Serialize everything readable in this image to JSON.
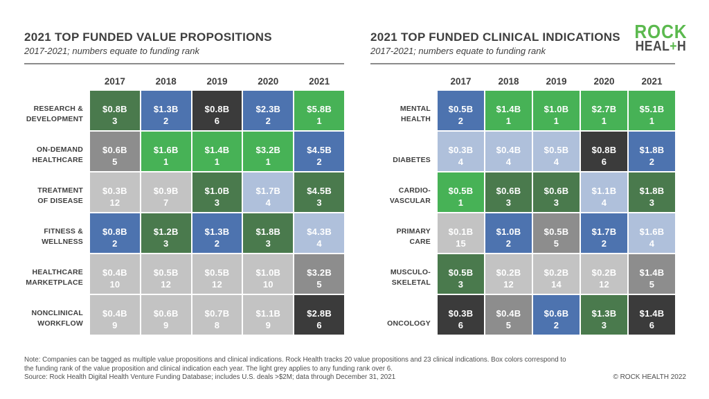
{
  "rank_colors": {
    "1": "#47B256",
    "2": "#4D73AF",
    "3": "#4A7A4D",
    "4": "#AFC0DB",
    "5": "#8D8D8D",
    "6": "#3B3B3B",
    "over6": "#C3C3C3"
  },
  "logo": {
    "line1": "ROCK",
    "line2_pre": "HEAL",
    "line2_plus": "+",
    "line2_post": "H",
    "green": "#5BB94E",
    "dark": "#4A4A4A"
  },
  "chart_data": [
    {
      "type": "heatmap",
      "title": "2021 TOP FUNDED VALUE PROPOSITIONS",
      "subtitle": "2017-2021; numbers equate to funding rank",
      "x_categories": [
        "2017",
        "2018",
        "2019",
        "2020",
        "2021"
      ],
      "value_unit": "billions USD",
      "color_encoding": "cell color = funding rank; light grey = rank over 6",
      "rows": [
        {
          "label_lines": [
            "RESEARCH &",
            "DEVELOPMENT"
          ],
          "amounts_billions": [
            0.8,
            1.3,
            0.8,
            2.3,
            5.8
          ],
          "ranks": [
            3,
            2,
            6,
            2,
            1
          ]
        },
        {
          "label_lines": [
            "ON-DEMAND",
            "HEALTHCARE"
          ],
          "amounts_billions": [
            0.6,
            1.6,
            1.4,
            3.2,
            4.5
          ],
          "ranks": [
            5,
            1,
            1,
            1,
            2
          ]
        },
        {
          "label_lines": [
            "TREATMENT",
            "OF DISEASE"
          ],
          "amounts_billions": [
            0.3,
            0.9,
            1.0,
            1.7,
            4.5
          ],
          "ranks": [
            12,
            7,
            3,
            4,
            3
          ]
        },
        {
          "label_lines": [
            "FITNESS &",
            "WELLNESS"
          ],
          "amounts_billions": [
            0.8,
            1.2,
            1.3,
            1.8,
            4.3
          ],
          "ranks": [
            2,
            3,
            2,
            3,
            4
          ]
        },
        {
          "label_lines": [
            "HEALTHCARE",
            "MARKETPLACE"
          ],
          "amounts_billions": [
            0.4,
            0.5,
            0.5,
            1.0,
            3.2
          ],
          "ranks": [
            10,
            12,
            12,
            10,
            5
          ]
        },
        {
          "label_lines": [
            "NONCLINICAL",
            "WORKFLOW"
          ],
          "amounts_billions": [
            0.4,
            0.6,
            0.7,
            1.1,
            2.8
          ],
          "ranks": [
            9,
            9,
            8,
            9,
            6
          ]
        }
      ]
    },
    {
      "type": "heatmap",
      "title": "2021 TOP FUNDED CLINICAL INDICATIONS",
      "subtitle": "2017-2021; numbers equate to funding rank",
      "x_categories": [
        "2017",
        "2018",
        "2019",
        "2020",
        "2021"
      ],
      "value_unit": "billions USD",
      "color_encoding": "cell color = funding rank; light grey = rank over 6",
      "rows": [
        {
          "label_lines": [
            "MENTAL",
            "HEALTH"
          ],
          "amounts_billions": [
            0.5,
            1.4,
            1.0,
            2.7,
            5.1
          ],
          "ranks": [
            2,
            1,
            1,
            1,
            1
          ]
        },
        {
          "label_lines": [
            "DIABETES"
          ],
          "amounts_billions": [
            0.3,
            0.4,
            0.5,
            0.8,
            1.8
          ],
          "ranks": [
            4,
            4,
            4,
            6,
            2
          ]
        },
        {
          "label_lines": [
            "CARDIO-",
            "VASCULAR"
          ],
          "amounts_billions": [
            0.5,
            0.6,
            0.6,
            1.1,
            1.8
          ],
          "ranks": [
            1,
            3,
            3,
            4,
            3
          ]
        },
        {
          "label_lines": [
            "PRIMARY",
            "CARE"
          ],
          "amounts_billions": [
            0.1,
            1.0,
            0.5,
            1.7,
            1.6
          ],
          "ranks": [
            15,
            2,
            5,
            2,
            4
          ]
        },
        {
          "label_lines": [
            "MUSCULO-",
            "SKELETAL"
          ],
          "amounts_billions": [
            0.5,
            0.2,
            0.2,
            0.2,
            1.4
          ],
          "ranks": [
            3,
            12,
            14,
            12,
            5
          ]
        },
        {
          "label_lines": [
            "ONCOLOGY"
          ],
          "amounts_billions": [
            0.3,
            0.4,
            0.6,
            1.3,
            1.4
          ],
          "ranks": [
            6,
            5,
            2,
            3,
            6
          ]
        }
      ]
    }
  ],
  "footer": {
    "note_lines": [
      "Note: Companies can  be tagged as multiple value propositions and clinical indications. Rock Health tracks 20 value propositions and 23 clinical indications. Box colors correspond to",
      "the funding rank of the value proposition and clinical indication each year. The light grey applies to any funding rank over 6."
    ],
    "source": "Source: Rock Health Digital Health Venture Funding Database; includes U.S. deals >$2M; data through December 31, 2021",
    "copyright": "© ROCK HEALTH 2022"
  }
}
